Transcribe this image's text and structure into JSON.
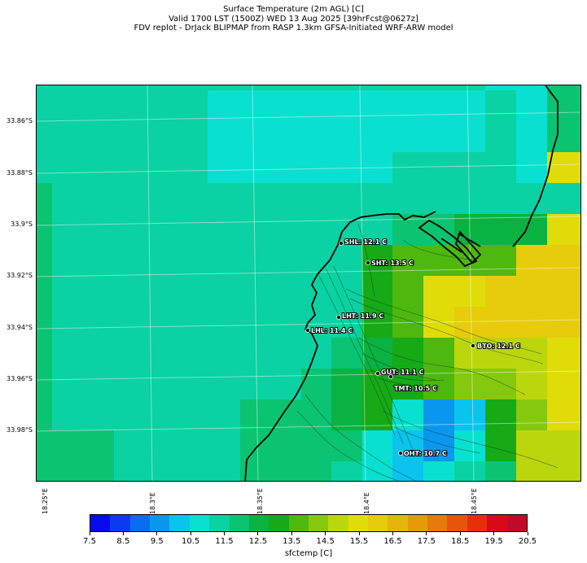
{
  "header": {
    "line1": "Surface Temperature (2m AGL) [C]",
    "line2": "Valid 1700 LST (1500Z) WED 13 Aug 2025 [39hrFcst@0627z]",
    "line3": "FDV replot - DrJack BLIPMAP from RASP 1.3km GFSA-Initiated WRF-ARW model"
  },
  "axes": {
    "lat_labels": [
      "33.86°S",
      "33.88°S",
      "33.9°S",
      "33.92°S",
      "33.94°S",
      "33.96°S",
      "33.98°S"
    ],
    "lon_labels": [
      "18.25°E",
      "18.3°E",
      "18.35°E",
      "18.4°E",
      "18.45°E"
    ]
  },
  "stations": [
    {
      "label": "SHL: 12.1 C"
    },
    {
      "label": "SHT: 13.5 C"
    },
    {
      "label": "LHT: 11.9 C"
    },
    {
      "label": "LHL: 11.4 C"
    },
    {
      "label": "BTO: 12.1 C"
    },
    {
      "label": "GUT: 11.1 C"
    },
    {
      "label": "TMT: 10.5 C"
    },
    {
      "label": "OHT: 10.7 C"
    }
  ],
  "colorbar": {
    "label": "sfctemp [C]",
    "ticks": [
      "7.5",
      "8.5",
      "9.5",
      "10.5",
      "11.5",
      "12.5",
      "13.5",
      "14.5",
      "15.5",
      "16.5",
      "17.5",
      "18.5",
      "19.5",
      "20.5"
    ],
    "colors": [
      "#0a0aee",
      "#0a3cee",
      "#0a6cee",
      "#0a98ee",
      "#0ac4ee",
      "#0ae0d0",
      "#0ad2a2",
      "#0ac472",
      "#0ab242",
      "#16aa16",
      "#4eb80e",
      "#86c80e",
      "#bcd60e",
      "#e0dc0a",
      "#e6cc0a",
      "#e6b40a",
      "#e69a0a",
      "#e67a0a",
      "#e6560a",
      "#e6300a",
      "#d80a18",
      "#c00a2a"
    ]
  }
}
